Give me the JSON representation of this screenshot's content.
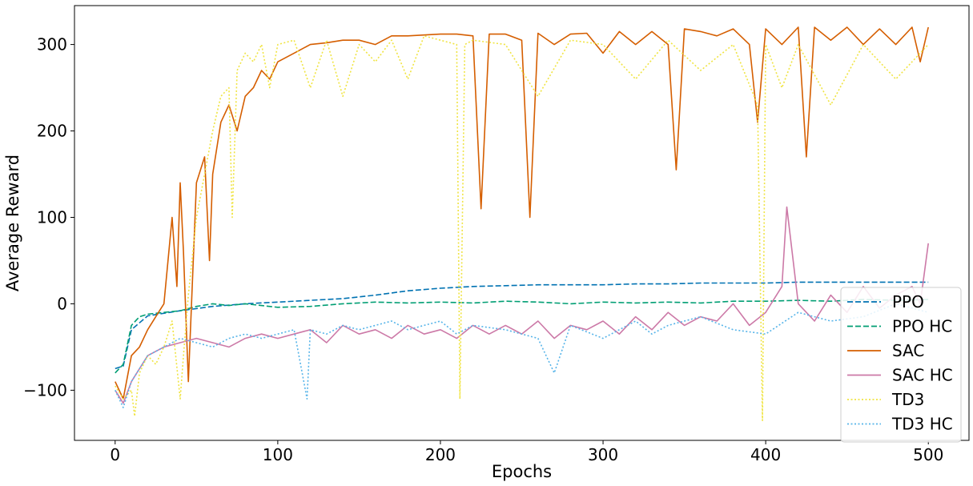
{
  "chart_data": {
    "type": "line",
    "title": "",
    "xlabel": "Epochs",
    "ylabel": "Average Reward",
    "xlim": [
      -25,
      525
    ],
    "ylim": [
      -158,
      345
    ],
    "xticks": [
      0,
      100,
      200,
      300,
      400,
      500
    ],
    "yticks": [
      -100,
      0,
      100,
      200,
      300
    ],
    "ytick_labels": [
      "−100",
      "0",
      "100",
      "200",
      "300"
    ],
    "grid": false,
    "legend_position": "lower-right",
    "series": [
      {
        "name": "PPO",
        "color": "#0072b2",
        "style": "dashed",
        "x": [
          0,
          5,
          10,
          20,
          40,
          60,
          80,
          100,
          120,
          140,
          160,
          180,
          200,
          220,
          240,
          260,
          280,
          300,
          320,
          340,
          360,
          380,
          400,
          420,
          440,
          460,
          480,
          500
        ],
        "y": [
          -75,
          -72,
          -30,
          -14,
          -8,
          -3,
          0,
          2,
          4,
          6,
          10,
          15,
          18,
          20,
          21,
          22,
          22,
          22,
          23,
          23,
          24,
          24,
          24,
          25,
          25,
          25,
          25,
          25
        ]
      },
      {
        "name": "PPO HC",
        "color": "#009e73",
        "style": "dashed",
        "x": [
          0,
          5,
          10,
          15,
          20,
          30,
          40,
          50,
          60,
          70,
          80,
          100,
          120,
          140,
          160,
          180,
          200,
          220,
          240,
          260,
          280,
          300,
          320,
          340,
          360,
          380,
          400,
          420,
          440,
          460,
          480,
          500
        ],
        "y": [
          -80,
          -70,
          -25,
          -15,
          -12,
          -10,
          -8,
          -3,
          0,
          -2,
          0,
          -4,
          -3,
          0,
          2,
          1,
          2,
          1,
          3,
          2,
          0,
          2,
          1,
          2,
          1,
          3,
          3,
          4,
          3,
          5,
          4,
          5
        ]
      },
      {
        "name": "SAC",
        "color": "#d55e00",
        "style": "solid",
        "x": [
          0,
          5,
          10,
          15,
          20,
          25,
          30,
          35,
          38,
          40,
          42,
          45,
          50,
          55,
          58,
          60,
          65,
          70,
          75,
          80,
          85,
          90,
          95,
          100,
          110,
          120,
          130,
          140,
          150,
          160,
          170,
          180,
          190,
          200,
          210,
          220,
          225,
          230,
          240,
          250,
          255,
          260,
          270,
          280,
          290,
          300,
          310,
          320,
          330,
          340,
          345,
          350,
          360,
          370,
          380,
          390,
          395,
          400,
          410,
          420,
          425,
          430,
          440,
          450,
          460,
          470,
          480,
          490,
          495,
          500
        ],
        "y": [
          -90,
          -110,
          -60,
          -50,
          -30,
          -15,
          0,
          100,
          20,
          140,
          60,
          -90,
          140,
          170,
          50,
          150,
          210,
          230,
          200,
          240,
          250,
          270,
          260,
          280,
          290,
          300,
          302,
          305,
          305,
          300,
          310,
          310,
          311,
          312,
          312,
          310,
          110,
          312,
          312,
          305,
          100,
          313,
          300,
          312,
          313,
          290,
          315,
          300,
          315,
          300,
          155,
          318,
          315,
          310,
          318,
          300,
          210,
          318,
          300,
          320,
          170,
          320,
          305,
          320,
          300,
          318,
          300,
          320,
          280,
          320
        ]
      },
      {
        "name": "SAC HC",
        "color": "#cc79a7",
        "style": "solid",
        "x": [
          0,
          5,
          10,
          20,
          30,
          40,
          50,
          60,
          70,
          80,
          90,
          100,
          110,
          120,
          130,
          140,
          150,
          160,
          170,
          180,
          190,
          200,
          210,
          220,
          230,
          240,
          250,
          260,
          270,
          280,
          290,
          300,
          310,
          320,
          330,
          340,
          350,
          360,
          370,
          380,
          390,
          400,
          410,
          413,
          420,
          430,
          440,
          450,
          460,
          470,
          480,
          490,
          495,
          500
        ],
        "y": [
          -100,
          -115,
          -90,
          -60,
          -50,
          -45,
          -40,
          -45,
          -50,
          -40,
          -35,
          -40,
          -35,
          -30,
          -45,
          -25,
          -35,
          -30,
          -40,
          -25,
          -35,
          -30,
          -40,
          -25,
          -35,
          -25,
          -35,
          -20,
          -40,
          -25,
          -30,
          -20,
          -35,
          -15,
          -30,
          -10,
          -25,
          -15,
          -20,
          0,
          -25,
          -10,
          20,
          112,
          0,
          -20,
          10,
          -10,
          20,
          -5,
          10,
          20,
          0,
          70
        ]
      },
      {
        "name": "TD3",
        "color": "#f0e442",
        "style": "dotted",
        "x": [
          0,
          5,
          10,
          12,
          15,
          20,
          25,
          30,
          35,
          40,
          42,
          45,
          50,
          55,
          60,
          65,
          70,
          72,
          75,
          80,
          85,
          90,
          95,
          100,
          110,
          120,
          130,
          140,
          150,
          160,
          170,
          180,
          190,
          200,
          210,
          212,
          215,
          220,
          240,
          260,
          280,
          300,
          320,
          340,
          360,
          380,
          395,
          398,
          400,
          410,
          420,
          440,
          460,
          480,
          500
        ],
        "y": [
          -95,
          -110,
          -100,
          -130,
          -80,
          -60,
          -70,
          -50,
          -20,
          -110,
          -60,
          10,
          100,
          150,
          200,
          240,
          250,
          100,
          270,
          290,
          280,
          300,
          250,
          300,
          305,
          250,
          305,
          240,
          300,
          280,
          305,
          260,
          310,
          305,
          300,
          -110,
          300,
          305,
          300,
          240,
          305,
          300,
          260,
          305,
          270,
          300,
          230,
          -135,
          300,
          250,
          300,
          230,
          300,
          260,
          300
        ]
      },
      {
        "name": "TD3 HC",
        "color": "#56b4e9",
        "style": "dotted",
        "x": [
          0,
          5,
          10,
          20,
          30,
          40,
          50,
          60,
          70,
          80,
          90,
          100,
          110,
          118,
          120,
          130,
          140,
          150,
          160,
          170,
          180,
          190,
          200,
          210,
          220,
          240,
          260,
          270,
          280,
          300,
          320,
          330,
          340,
          360,
          380,
          400,
          420,
          440,
          460,
          480,
          500
        ],
        "y": [
          -100,
          -120,
          -90,
          -60,
          -50,
          -40,
          -45,
          -50,
          -40,
          -35,
          -40,
          -35,
          -30,
          -110,
          -30,
          -35,
          -25,
          -30,
          -25,
          -20,
          -30,
          -25,
          -20,
          -35,
          -25,
          -30,
          -40,
          -80,
          -25,
          -40,
          -20,
          -35,
          -25,
          -15,
          -30,
          -35,
          -10,
          -20,
          -15,
          0,
          -10
        ]
      }
    ]
  }
}
